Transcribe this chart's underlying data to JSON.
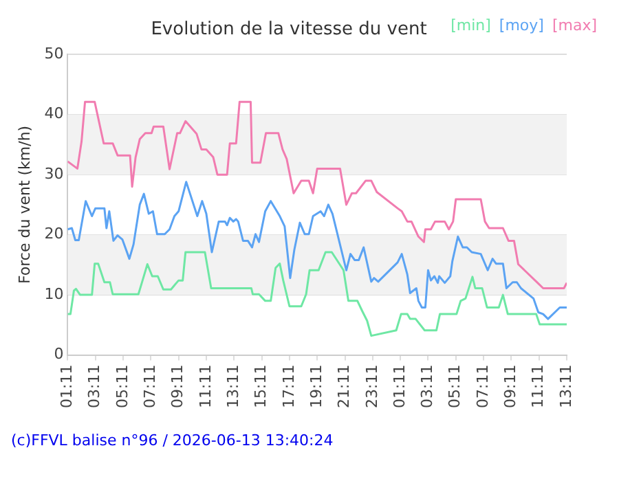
{
  "chart_data": {
    "type": "line",
    "title": "Evolution de la vitesse du vent",
    "ylabel": "Force du vent (km/h)",
    "xlim": [
      "2026-06-12T01:11",
      "2026-06-13T13:11"
    ],
    "xticks": [
      {
        "value": "2026-06-12T01:11",
        "label": "01:11"
      },
      {
        "value": "2026-06-12T03:11",
        "label": "03:11"
      },
      {
        "value": "2026-06-12T05:11",
        "label": "05:11"
      },
      {
        "value": "2026-06-12T07:11",
        "label": "07:11"
      },
      {
        "value": "2026-06-12T09:11",
        "label": "09:11"
      },
      {
        "value": "2026-06-12T11:11",
        "label": "11:11"
      },
      {
        "value": "2026-06-12T13:11",
        "label": "13:11"
      },
      {
        "value": "2026-06-12T15:11",
        "label": "15:11"
      },
      {
        "value": "2026-06-12T17:11",
        "label": "17:11"
      },
      {
        "value": "2026-06-12T19:11",
        "label": "19:11"
      },
      {
        "value": "2026-06-12T21:11",
        "label": "21:11"
      },
      {
        "value": "2026-06-12T23:11",
        "label": "23:11"
      },
      {
        "value": "2026-06-13T01:11",
        "label": "01:11"
      },
      {
        "value": "2026-06-13T03:11",
        "label": "03:11"
      },
      {
        "value": "2026-06-13T05:11",
        "label": "05:11"
      },
      {
        "value": "2026-06-13T07:11",
        "label": "07:11"
      },
      {
        "value": "2026-06-13T09:11",
        "label": "09:11"
      },
      {
        "value": "2026-06-13T11:11",
        "label": "11:11"
      },
      {
        "value": "2026-06-13T13:11",
        "label": "13:11"
      }
    ],
    "ylim": [
      0,
      50
    ],
    "yticks": [
      0,
      10,
      20,
      30,
      40,
      50
    ],
    "grid": "y",
    "legend": "top right",
    "marker": "none",
    "line_style": "solid",
    "annotations": [
      "(c)FFVL balise n°96 / 2026-06-13 13:40:24"
    ],
    "series": [
      {
        "name": "[min]",
        "color": "#6ee7a4",
        "x": [
          "2026-06-12T01:11",
          "2026-06-12T01:23",
          "2026-06-12T01:38",
          "2026-06-12T01:47",
          "2026-06-12T02:05",
          "2026-06-12T02:56",
          "2026-06-12T03:08",
          "2026-06-12T03:23",
          "2026-06-12T03:50",
          "2026-06-12T04:14",
          "2026-06-12T04:26",
          "2026-06-12T06:17",
          "2026-06-12T06:32",
          "2026-06-12T06:56",
          "2026-06-12T07:17",
          "2026-06-12T07:41",
          "2026-06-12T08:05",
          "2026-06-12T08:38",
          "2026-06-12T09:11",
          "2026-06-12T09:29",
          "2026-06-12T09:41",
          "2026-06-12T11:05",
          "2026-06-12T11:32",
          "2026-06-12T14:26",
          "2026-06-12T14:32",
          "2026-06-12T14:59",
          "2026-06-12T15:26",
          "2026-06-12T15:50",
          "2026-06-12T16:11",
          "2026-06-12T16:29",
          "2026-06-12T16:44",
          "2026-06-12T17:11",
          "2026-06-12T18:02",
          "2026-06-12T18:23",
          "2026-06-12T18:38",
          "2026-06-12T19:17",
          "2026-06-12T19:47",
          "2026-06-12T20:14",
          "2026-06-12T21:05",
          "2026-06-12T21:26",
          "2026-06-12T22:05",
          "2026-06-12T22:26",
          "2026-06-12T22:47",
          "2026-06-12T23:05",
          "2026-06-13T00:53",
          "2026-06-13T01:14",
          "2026-06-13T01:41",
          "2026-06-13T01:53",
          "2026-06-13T02:17",
          "2026-06-13T02:56",
          "2026-06-13T03:47",
          "2026-06-13T04:02",
          "2026-06-13T05:14",
          "2026-06-13T05:32",
          "2026-06-13T05:53",
          "2026-06-13T06:23",
          "2026-06-13T06:35",
          "2026-06-13T07:05",
          "2026-06-13T07:26",
          "2026-06-13T08:17",
          "2026-06-13T08:35",
          "2026-06-13T08:56",
          "2026-06-13T10:59",
          "2026-06-13T11:14",
          "2026-06-13T13:11"
        ],
        "values": [
          6.8,
          6.8,
          10.7,
          11,
          10,
          10,
          15.2,
          15.2,
          12.1,
          12.1,
          10.1,
          10.1,
          12,
          15.1,
          13.1,
          13.1,
          10.9,
          10.9,
          12.4,
          12.4,
          17.1,
          17.1,
          11.1,
          11.1,
          10.1,
          10.1,
          9,
          9,
          14.5,
          15.2,
          12.4,
          8.1,
          8.1,
          10.1,
          14.1,
          14.1,
          17.1,
          17.1,
          14.1,
          9,
          9,
          7.3,
          5.7,
          3.2,
          4.1,
          6.8,
          6.8,
          6,
          6,
          4.1,
          4.1,
          6.8,
          6.8,
          9,
          9.4,
          13,
          11.1,
          11.1,
          7.9,
          7.9,
          10,
          6.8,
          6.8,
          5.1,
          5.1
        ]
      },
      {
        "name": "[moy]",
        "color": "#5ba3f3",
        "x": [
          "2026-06-12T01:11",
          "2026-06-12T01:29",
          "2026-06-12T01:44",
          "2026-06-12T01:59",
          "2026-06-12T02:29",
          "2026-06-12T02:56",
          "2026-06-12T03:11",
          "2026-06-12T03:50",
          "2026-06-12T03:59",
          "2026-06-12T04:11",
          "2026-06-12T04:29",
          "2026-06-12T04:47",
          "2026-06-12T05:08",
          "2026-06-12T05:38",
          "2026-06-12T05:56",
          "2026-06-12T06:23",
          "2026-06-12T06:41",
          "2026-06-12T07:02",
          "2026-06-12T07:20",
          "2026-06-12T07:38",
          "2026-06-12T08:11",
          "2026-06-12T08:32",
          "2026-06-12T08:53",
          "2026-06-12T09:11",
          "2026-06-12T09:44",
          "2026-06-12T10:32",
          "2026-06-12T10:53",
          "2026-06-12T11:11",
          "2026-06-12T11:35",
          "2026-06-12T12:05",
          "2026-06-12T12:32",
          "2026-06-12T12:41",
          "2026-06-12T12:53",
          "2026-06-12T13:08",
          "2026-06-12T13:20",
          "2026-06-12T13:29",
          "2026-06-12T13:50",
          "2026-06-12T14:11",
          "2026-06-12T14:29",
          "2026-06-12T14:44",
          "2026-06-12T14:59",
          "2026-06-12T15:26",
          "2026-06-12T15:50",
          "2026-06-12T16:29",
          "2026-06-12T16:50",
          "2026-06-12T17:14",
          "2026-06-12T17:32",
          "2026-06-12T17:56",
          "2026-06-12T18:17",
          "2026-06-12T18:35",
          "2026-06-12T18:53",
          "2026-06-12T19:26",
          "2026-06-12T19:41",
          "2026-06-12T19:59",
          "2026-06-12T20:17",
          "2026-06-12T20:47",
          "2026-06-12T21:17",
          "2026-06-12T21:35",
          "2026-06-12T21:53",
          "2026-06-12T22:11",
          "2026-06-12T22:32",
          "2026-06-12T23:05",
          "2026-06-12T23:17",
          "2026-06-12T23:35",
          "2026-06-13T00:59",
          "2026-06-13T01:17",
          "2026-06-13T01:41",
          "2026-06-13T01:53",
          "2026-06-13T02:20",
          "2026-06-13T02:29",
          "2026-06-13T02:44",
          "2026-06-13T02:59",
          "2026-06-13T03:11",
          "2026-06-13T03:23",
          "2026-06-13T03:38",
          "2026-06-13T03:53",
          "2026-06-13T03:59",
          "2026-06-13T04:23",
          "2026-06-13T04:47",
          "2026-06-13T04:56",
          "2026-06-13T05:20",
          "2026-06-13T05:41",
          "2026-06-13T05:59",
          "2026-06-13T06:20",
          "2026-06-13T06:59",
          "2026-06-13T07:29",
          "2026-06-13T07:50",
          "2026-06-13T08:05",
          "2026-06-13T08:35",
          "2026-06-13T08:50",
          "2026-06-13T09:17",
          "2026-06-13T09:35",
          "2026-06-13T09:53",
          "2026-06-13T10:47",
          "2026-06-13T11:08",
          "2026-06-13T11:29",
          "2026-06-13T11:50",
          "2026-06-13T12:41",
          "2026-06-13T13:11"
        ],
        "values": [
          20.9,
          21.1,
          19.1,
          19.1,
          25.6,
          23.1,
          24.4,
          24.4,
          21.1,
          23.9,
          19,
          19.9,
          19.2,
          16,
          18.4,
          25,
          26.8,
          23.5,
          23.9,
          20.1,
          20.1,
          20.9,
          23.1,
          23.9,
          28.8,
          23.1,
          25.6,
          23.5,
          17.1,
          22.2,
          22.2,
          21.6,
          22.8,
          22.2,
          22.6,
          22.2,
          19,
          19,
          17.9,
          20.1,
          18.8,
          23.9,
          25.6,
          23.1,
          21.4,
          12.8,
          17.5,
          22,
          20.1,
          20.1,
          23.1,
          23.9,
          23.1,
          25,
          23.5,
          18.8,
          14.1,
          16.8,
          15.8,
          15.8,
          17.9,
          12.2,
          12.8,
          12.2,
          15.4,
          16.8,
          13.4,
          10.3,
          11.1,
          9,
          7.9,
          7.9,
          14.1,
          12.4,
          13.1,
          12,
          13.1,
          12,
          13.1,
          15.6,
          19.7,
          17.9,
          17.9,
          17.1,
          16.8,
          14.1,
          16,
          15.2,
          15.2,
          11.1,
          12.1,
          12.1,
          11.1,
          9.4,
          7.1,
          6.8,
          6,
          7.9,
          7.9
        ]
      },
      {
        "name": "[max]",
        "color": "#f17cb0",
        "x": [
          "2026-06-12T01:11",
          "2026-06-12T01:32",
          "2026-06-12T01:53",
          "2026-06-12T02:11",
          "2026-06-12T02:26",
          "2026-06-12T03:08",
          "2026-06-12T03:47",
          "2026-06-12T04:26",
          "2026-06-12T04:47",
          "2026-06-12T05:29",
          "2026-06-12T05:41",
          "2026-06-12T05:50",
          "2026-06-12T06:05",
          "2026-06-12T06:23",
          "2026-06-12T06:47",
          "2026-06-12T07:14",
          "2026-06-12T07:23",
          "2026-06-12T08:05",
          "2026-06-12T08:32",
          "2026-06-12T09:05",
          "2026-06-12T09:17",
          "2026-06-12T09:41",
          "2026-06-12T10:29",
          "2026-06-12T10:50",
          "2026-06-12T11:11",
          "2026-06-12T11:41",
          "2026-06-12T11:59",
          "2026-06-12T12:41",
          "2026-06-12T12:53",
          "2026-06-12T13:20",
          "2026-06-12T13:35",
          "2026-06-12T14:23",
          "2026-06-12T14:29",
          "2026-06-12T15:05",
          "2026-06-12T15:29",
          "2026-06-12T16:23",
          "2026-06-12T16:41",
          "2026-06-12T16:59",
          "2026-06-12T17:29",
          "2026-06-12T18:02",
          "2026-06-12T18:35",
          "2026-06-12T18:53",
          "2026-06-12T19:11",
          "2026-06-12T20:50",
          "2026-06-12T21:17",
          "2026-06-12T21:41",
          "2026-06-12T21:59",
          "2026-06-12T22:41",
          "2026-06-12T23:05",
          "2026-06-12T23:29",
          "2026-06-13T00:59",
          "2026-06-13T01:17",
          "2026-06-13T01:41",
          "2026-06-13T01:59",
          "2026-06-13T02:29",
          "2026-06-13T02:53",
          "2026-06-13T02:59",
          "2026-06-13T03:23",
          "2026-06-13T03:41",
          "2026-06-13T04:23",
          "2026-06-13T04:41",
          "2026-06-13T04:59",
          "2026-06-13T05:11",
          "2026-06-13T06:59",
          "2026-06-13T07:17",
          "2026-06-13T07:35",
          "2026-06-13T08:35",
          "2026-06-13T08:59",
          "2026-06-13T09:23",
          "2026-06-13T09:41",
          "2026-06-13T11:05",
          "2026-06-13T11:29",
          "2026-06-13T12:59",
          "2026-06-13T13:11"
        ],
        "values": [
          32.2,
          31.6,
          31,
          35.5,
          42.1,
          42.1,
          35.2,
          35.2,
          33.2,
          33.2,
          33.2,
          28,
          32.9,
          35.9,
          36.9,
          36.9,
          38,
          38,
          30.9,
          36.9,
          36.9,
          38.9,
          36.8,
          34.2,
          34.2,
          32.9,
          30,
          30,
          35.2,
          35.2,
          42.1,
          42.1,
          32,
          32,
          36.9,
          36.9,
          34.2,
          32.6,
          26.9,
          29,
          29,
          26.9,
          31,
          31,
          25,
          26.9,
          26.9,
          29,
          29,
          27.1,
          24.4,
          23.9,
          22.2,
          22.2,
          19.7,
          18.8,
          20.9,
          20.9,
          22.2,
          22.2,
          20.9,
          22.2,
          25.9,
          25.9,
          22.2,
          21.1,
          21.1,
          19,
          19,
          15.1,
          12,
          11.1,
          11.1,
          12
        ]
      }
    ]
  }
}
